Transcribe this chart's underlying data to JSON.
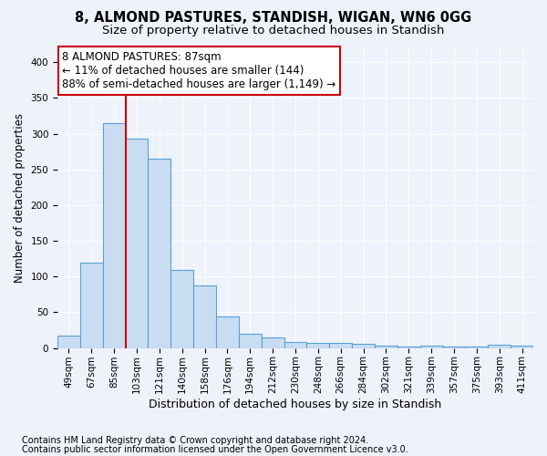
{
  "title1": "8, ALMOND PASTURES, STANDISH, WIGAN, WN6 0GG",
  "title2": "Size of property relative to detached houses in Standish",
  "xlabel": "Distribution of detached houses by size in Standish",
  "ylabel": "Number of detached properties",
  "categories": [
    "49sqm",
    "67sqm",
    "85sqm",
    "103sqm",
    "121sqm",
    "140sqm",
    "158sqm",
    "176sqm",
    "194sqm",
    "212sqm",
    "230sqm",
    "248sqm",
    "266sqm",
    "284sqm",
    "302sqm",
    "321sqm",
    "339sqm",
    "357sqm",
    "375sqm",
    "393sqm",
    "411sqm"
  ],
  "values": [
    18,
    120,
    315,
    293,
    265,
    109,
    88,
    44,
    20,
    15,
    9,
    7,
    7,
    6,
    4,
    2,
    4,
    2,
    2,
    5,
    3
  ],
  "bar_color": "#c9ddf2",
  "bar_edge_color": "#5a9fd4",
  "vline_x": 2.5,
  "annotation_text": "8 ALMOND PASTURES: 87sqm\n← 11% of detached houses are smaller (144)\n88% of semi-detached houses are larger (1,149) →",
  "annotation_box_facecolor": "#ffffff",
  "annotation_box_edgecolor": "#cc0000",
  "vline_color": "#cc0000",
  "footnote1": "Contains HM Land Registry data © Crown copyright and database right 2024.",
  "footnote2": "Contains public sector information licensed under the Open Government Licence v3.0.",
  "bg_color": "#eef2fb",
  "plot_bg_color": "#eef2fb",
  "ylim": [
    0,
    420
  ],
  "yticks": [
    0,
    50,
    100,
    150,
    200,
    250,
    300,
    350,
    400
  ],
  "grid_color": "#ffffff",
  "title1_fontsize": 10.5,
  "title2_fontsize": 9.5,
  "xlabel_fontsize": 9,
  "ylabel_fontsize": 8.5,
  "tick_fontsize": 7.5,
  "annotation_fontsize": 8.5,
  "footnote_fontsize": 7
}
